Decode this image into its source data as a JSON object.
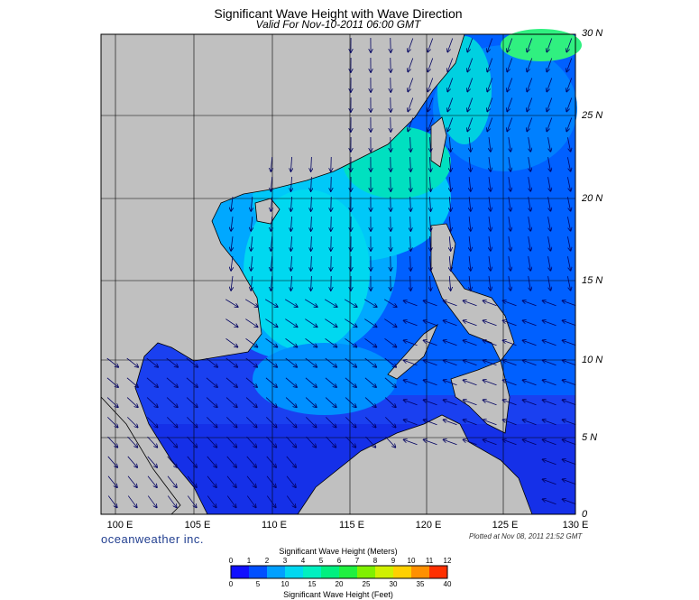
{
  "header": {
    "title": "Significant Wave Height with Wave Direction",
    "subtitle": "Valid For Nov-10-2011 06:00 GMT"
  },
  "map": {
    "lon_range": [
      98,
      130
    ],
    "lat_range": [
      0,
      30
    ],
    "lat_labels": [
      "30 N",
      "25 N",
      "20 N",
      "15 N",
      "10 N",
      "5 N",
      "0"
    ],
    "lon_labels": [
      "100 E",
      "105 E",
      "110 E",
      "115 E",
      "120 E",
      "125 E",
      "130 E"
    ],
    "land_color": "#c0c0c0",
    "grid": true
  },
  "footer": {
    "brand": "oceanweather inc.",
    "plotted": "Plotted at Nov 08, 2011 21:52 GMT"
  },
  "colorbar": {
    "title_meters": "Significant Wave Height (Meters)",
    "title_feet": "Significant Wave Height (Feet)",
    "meters_ticks": [
      "0",
      "1",
      "2",
      "3",
      "4",
      "5",
      "6",
      "7",
      "8",
      "9",
      "10",
      "11",
      "12"
    ],
    "feet_ticks": [
      "0",
      "5",
      "10",
      "15",
      "20",
      "25",
      "30",
      "35",
      "40"
    ],
    "colors": [
      "#1010ff",
      "#0050ff",
      "#00a0ff",
      "#00d8f0",
      "#00f0c0",
      "#00f080",
      "#20f040",
      "#80f000",
      "#d0f000",
      "#ffd000",
      "#ff9000",
      "#ff3000"
    ]
  }
}
